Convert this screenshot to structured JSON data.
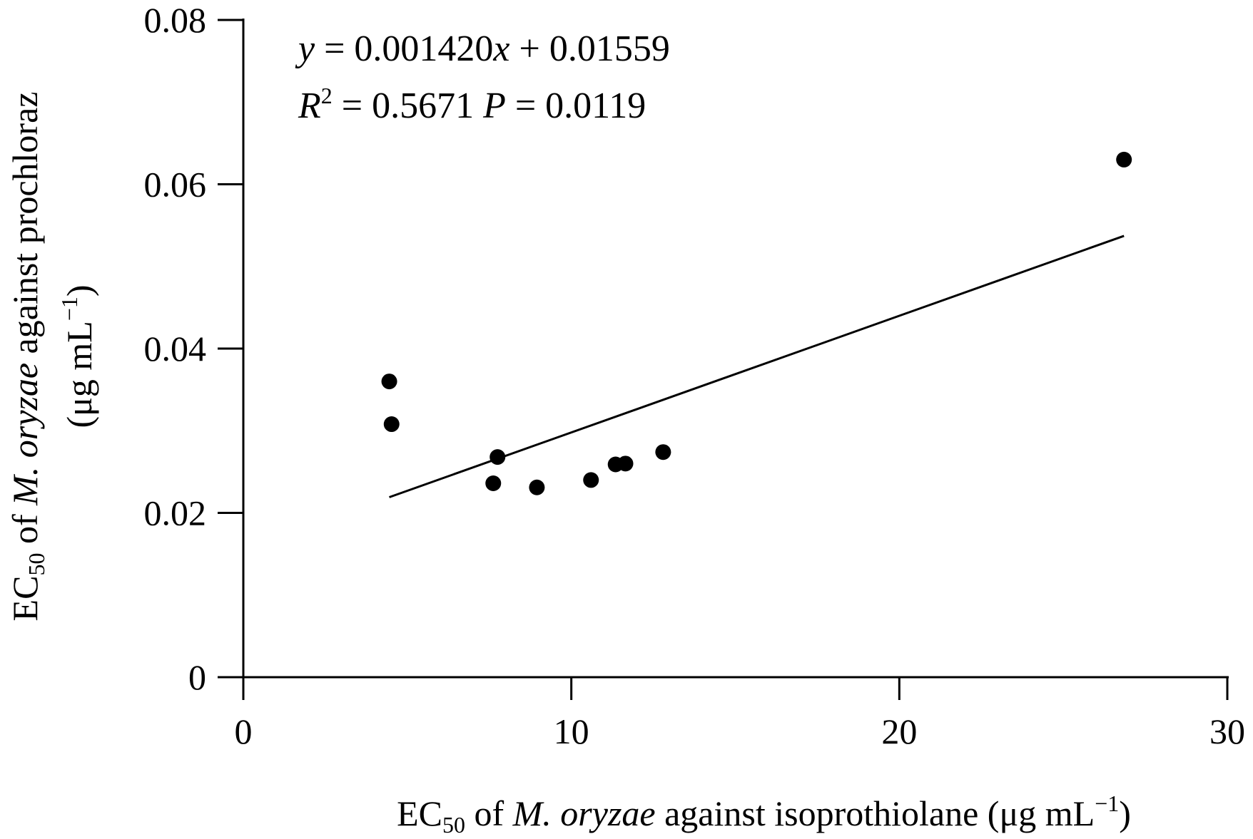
{
  "chart_data": {
    "type": "scatter",
    "title": "",
    "x_axis": {
      "label_parts": [
        {
          "text": "EC",
          "style": "normal"
        },
        {
          "text": "50",
          "style": "sub"
        },
        {
          "text": " of ",
          "style": "normal"
        },
        {
          "text": "M. oryzae",
          "style": "italic"
        },
        {
          "text": " against isoprothiolane (μg mL",
          "style": "normal"
        },
        {
          "text": "−1",
          "style": "sup"
        },
        {
          "text": ")",
          "style": "normal"
        }
      ],
      "ticks": [
        0,
        10,
        20,
        30
      ],
      "tick_labels": [
        "0",
        "10",
        "20",
        "30"
      ],
      "range": [
        0,
        30
      ]
    },
    "y_axis": {
      "label_line1_parts": [
        {
          "text": "EC",
          "style": "normal"
        },
        {
          "text": "50",
          "style": "sub"
        },
        {
          "text": " of ",
          "style": "normal"
        },
        {
          "text": "M. oryzae",
          "style": "italic"
        },
        {
          "text": " against prochloraz",
          "style": "normal"
        }
      ],
      "label_line2_parts": [
        {
          "text": "(μg mL",
          "style": "normal"
        },
        {
          "text": "−1",
          "style": "sup"
        },
        {
          "text": ")",
          "style": "normal"
        }
      ],
      "ticks": [
        0,
        0.02,
        0.04,
        0.06,
        0.08
      ],
      "tick_labels": [
        "0",
        "0.02",
        "0.04",
        "0.06",
        "0.08"
      ],
      "range": [
        0,
        0.08
      ]
    },
    "points": [
      {
        "x": 4.45,
        "y": 0.036
      },
      {
        "x": 4.52,
        "y": 0.0308
      },
      {
        "x": 7.62,
        "y": 0.0236
      },
      {
        "x": 7.75,
        "y": 0.0268
      },
      {
        "x": 8.95,
        "y": 0.0231
      },
      {
        "x": 10.6,
        "y": 0.024
      },
      {
        "x": 11.35,
        "y": 0.0259
      },
      {
        "x": 11.65,
        "y": 0.026
      },
      {
        "x": 12.8,
        "y": 0.0274
      },
      {
        "x": 26.85,
        "y": 0.063
      }
    ],
    "regression": {
      "slope": 0.00142,
      "intercept": 0.01559,
      "x_range": [
        4.45,
        26.85
      ]
    },
    "annotations": {
      "equation_parts": [
        {
          "text": "y",
          "style": "italic"
        },
        {
          "text": " = 0.001420",
          "style": "normal"
        },
        {
          "text": "x",
          "style": "italic"
        },
        {
          "text": " + 0.01559",
          "style": "normal"
        }
      ],
      "stats_parts": [
        {
          "text": "R",
          "style": "italic"
        },
        {
          "text": "2",
          "style": "sup"
        },
        {
          "text": " = 0.5671   ",
          "style": "normal"
        },
        {
          "text": "P",
          "style": "italic"
        },
        {
          "text": " = 0.0119",
          "style": "normal"
        }
      ]
    },
    "grid": false,
    "colors": {
      "points": "#000000",
      "line": "#000000",
      "axes": "#000000"
    }
  }
}
